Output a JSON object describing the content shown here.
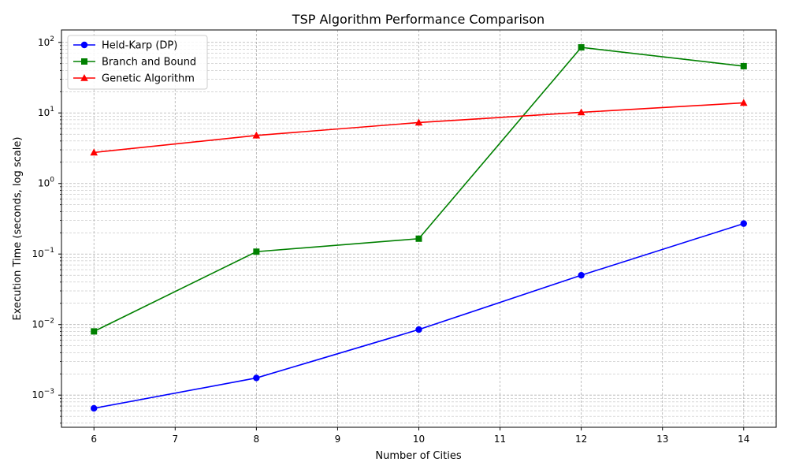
{
  "chart_data": {
    "type": "line",
    "title": "TSP Algorithm Performance Comparison",
    "xlabel": "Number of Cities",
    "ylabel": "Execution Time (seconds, log scale)",
    "x": [
      6,
      8,
      10,
      12,
      14
    ],
    "xlim": [
      5.6,
      14.4
    ],
    "ylim": [
      0.00035,
      150
    ],
    "y_scale": "log",
    "x_ticks": [
      "6",
      "7",
      "8",
      "9",
      "10",
      "11",
      "12",
      "13",
      "14"
    ],
    "y_ticks": [
      {
        "value": 0.001,
        "base": "10",
        "exp": "−3"
      },
      {
        "value": 0.01,
        "base": "10",
        "exp": "−2"
      },
      {
        "value": 0.1,
        "base": "10",
        "exp": "−1"
      },
      {
        "value": 1,
        "base": "10",
        "exp": "0"
      },
      {
        "value": 10,
        "base": "10",
        "exp": "1"
      },
      {
        "value": 100,
        "base": "10",
        "exp": "2"
      }
    ],
    "grid": "both (major and minor, dashed)",
    "legend_position": "top-left",
    "series": [
      {
        "name": "Held-Karp (DP)",
        "color": "#0000ff",
        "marker": "circle",
        "values": [
          0.00065,
          0.00175,
          0.0085,
          0.05,
          0.27
        ]
      },
      {
        "name": "Branch and Bound",
        "color": "#008000",
        "marker": "square",
        "values": [
          0.008,
          0.108,
          0.165,
          85,
          46
        ]
      },
      {
        "name": "Genetic Algorithm",
        "color": "#ff0000",
        "marker": "triangle",
        "values": [
          2.75,
          4.8,
          7.3,
          10.2,
          13.9
        ]
      }
    ]
  }
}
